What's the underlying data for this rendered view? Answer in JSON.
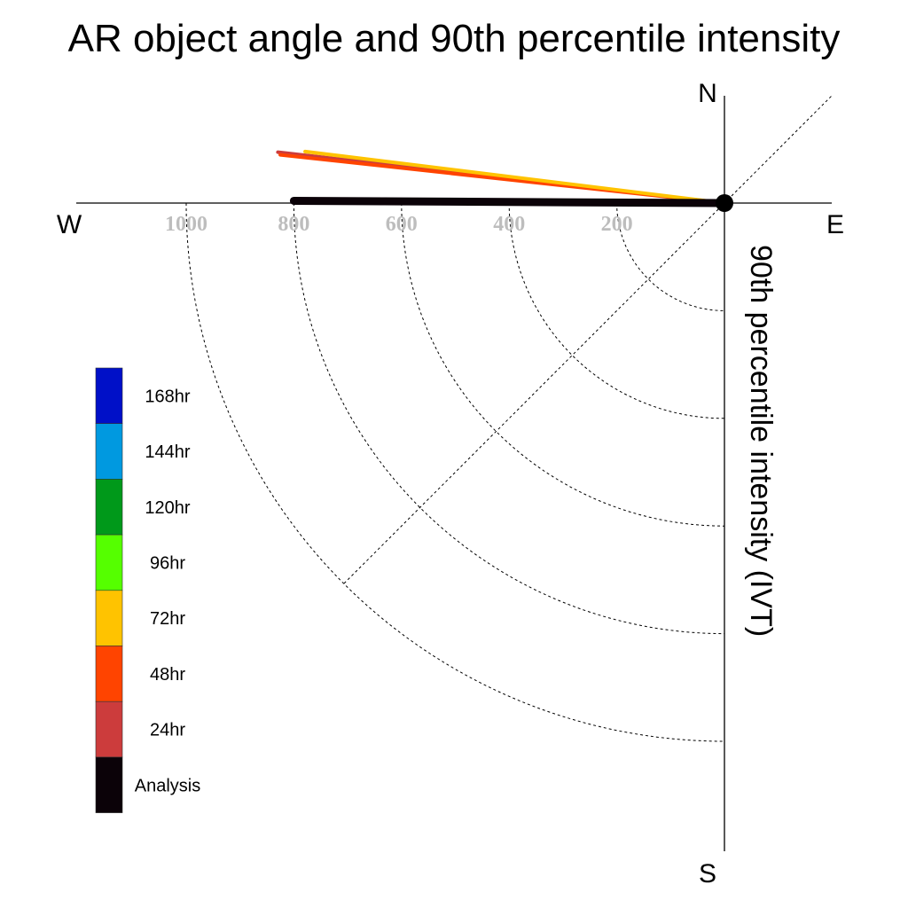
{
  "chart_data": {
    "type": "polar-vector",
    "title": "AR object angle and 90th percentile intensity",
    "ylabel": "90th percentile intensity (IVT)",
    "compass": {
      "north": "N",
      "south": "S",
      "east": "E",
      "west": "W"
    },
    "radial_ticks": [
      1000,
      800,
      600,
      400,
      200
    ],
    "radial_range": [
      0,
      1000
    ],
    "series": [
      {
        "name": "24hr",
        "angle_deg": 173.5,
        "intensity": 835,
        "color": "#cc3c3c"
      },
      {
        "name": "48hr",
        "angle_deg": 173.8,
        "intensity": 830,
        "color": "#ff4400"
      },
      {
        "name": "72hr",
        "angle_deg": 173.0,
        "intensity": 785,
        "color": "#ffc300"
      },
      {
        "name": "Analysis",
        "angle_deg": 179.7,
        "intensity": 800,
        "color": "#0b0208"
      }
    ],
    "legend": [
      {
        "label": "168hr",
        "color": "#0010c8"
      },
      {
        "label": "144hr",
        "color": "#0099e0"
      },
      {
        "label": "120hr",
        "color": "#00991a"
      },
      {
        "label": "96hr",
        "color": "#55ff00"
      },
      {
        "label": "72hr",
        "color": "#ffc300"
      },
      {
        "label": "48hr",
        "color": "#ff4400"
      },
      {
        "label": "24hr",
        "color": "#cc3c3c"
      },
      {
        "label": "Analysis",
        "color": "#0b0208"
      }
    ]
  }
}
